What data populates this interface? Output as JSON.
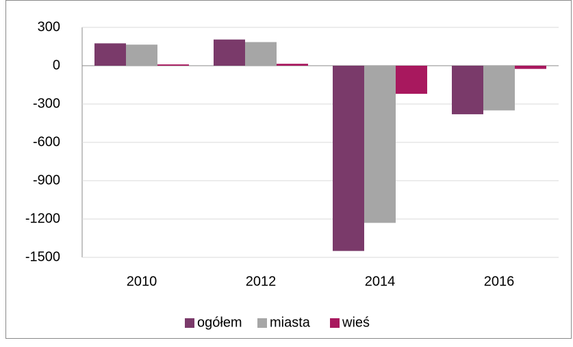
{
  "chart_data": {
    "type": "bar",
    "categories": [
      "2010",
      "2012",
      "2014",
      "2016"
    ],
    "series": [
      {
        "name": "ogółem",
        "color": "#7a3a6a",
        "values": [
          175,
          205,
          -1450,
          -380
        ]
      },
      {
        "name": "miasta",
        "color": "#a6a6a6",
        "values": [
          165,
          185,
          -1230,
          -350
        ]
      },
      {
        "name": "wieś",
        "color": "#a8185e",
        "values": [
          10,
          15,
          -220,
          -25
        ]
      }
    ],
    "ylim": [
      -1500,
      300
    ],
    "yticks": [
      -1500,
      -1200,
      -900,
      -600,
      -300,
      0,
      300
    ],
    "grid": true,
    "legend": "bottom"
  }
}
